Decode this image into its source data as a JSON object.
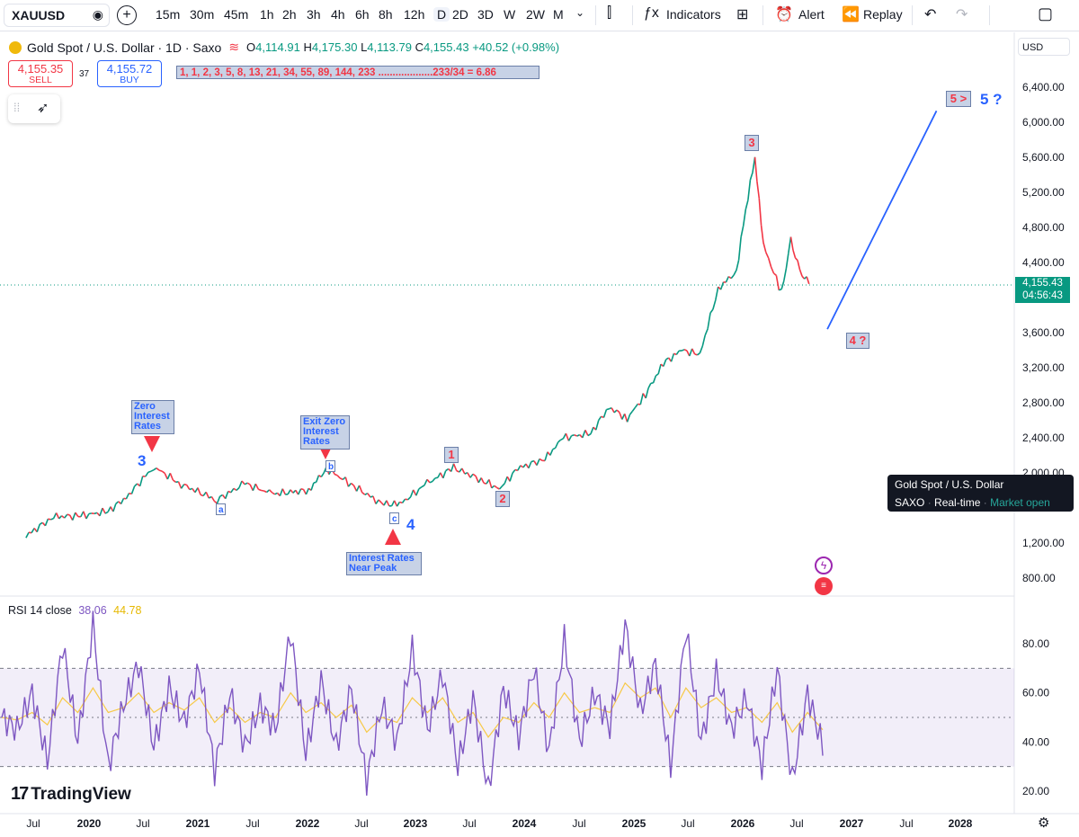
{
  "toolbar": {
    "symbol": "XAUUSD",
    "timeframes": [
      "15m",
      "30m",
      "45m",
      "1h",
      "2h",
      "3h",
      "4h",
      "6h",
      "8h",
      "12h",
      "D",
      "2D",
      "3D",
      "W",
      "2W",
      "M"
    ],
    "active_timeframe": "D",
    "indicators_label": "Indicators",
    "alert_label": "Alert",
    "replay_label": "Replay"
  },
  "legend": {
    "title": "Gold Spot / U.S. Dollar · 1D · Saxo",
    "open_label": "O",
    "open": "4,114.91",
    "high_label": "H",
    "high": "4,175.30",
    "low_label": "L",
    "low": "4,113.79",
    "close_label": "C",
    "close": "4,155.43",
    "change": "+40.52 (+0.98%)"
  },
  "trade": {
    "sell_price": "4,155.35",
    "sell_label": "SELL",
    "spread": "37",
    "buy_price": "4,155.72",
    "buy_label": "BUY"
  },
  "fib_note": "1, 1, 2, 3, 5, 8, 13, 21, 34, 55, 89, 144, 233 ...................233/34 = 6.86",
  "currency": "USD",
  "current_price": {
    "price": "4,155.43",
    "countdown": "04:56:43"
  },
  "tooltip": {
    "title": "Gold Spot / U.S. Dollar",
    "source": "SAXO",
    "type": "Real-time",
    "status": "Market open"
  },
  "annotations": {
    "zero_rates": "Zero Interest Rates",
    "exit_zero": "Exit Zero Interest Rates",
    "rates_peak": "Interest Rates Near Peak",
    "wave3_low": "3",
    "wave4_low": "4",
    "a": "a",
    "b": "b",
    "c": "c",
    "w1": "1",
    "w2": "2",
    "w3": "3",
    "w4q": "4 ?",
    "w5box": "5 >",
    "w5q": "5 ?"
  },
  "rsi": {
    "label": "RSI 14 close",
    "value": "38.06",
    "ma": "44.78"
  },
  "brand": "TradingView",
  "colors": {
    "candle_up": "#089981",
    "candle_down": "#f23645",
    "rsi_line": "#7e57c2",
    "rsi_ma": "#f7c948",
    "projection": "#2962ff",
    "annotation_red": "#f23645",
    "annotation_blue": "#2962ff"
  },
  "chart_data": [
    {
      "type": "line",
      "title": "Gold Spot / U.S. Dollar · 1D · Saxo",
      "series": [
        {
          "name": "Gold Spot / U.S. Dollar",
          "x": [
            "2019-06",
            "2019-09",
            "2019-12",
            "2020-03",
            "2020-05",
            "2020-08",
            "2020-11",
            "2021-03",
            "2021-06",
            "2021-09",
            "2022-01",
            "2022-03",
            "2022-06",
            "2022-09",
            "2022-11",
            "2023-02",
            "2023-05",
            "2023-08",
            "2023-10",
            "2023-12",
            "2024-03",
            "2024-05",
            "2024-08",
            "2024-10",
            "2024-12",
            "2025-02",
            "2025-04",
            "2025-06",
            "2025-08",
            "2025-10",
            "2025-12",
            "2026-01",
            "2026-02",
            "2026-03",
            "2026-05",
            "2026-06",
            "2026-07",
            "2026-08"
          ],
          "y": [
            1280,
            1500,
            1510,
            1560,
            1720,
            2070,
            1870,
            1690,
            1880,
            1760,
            1800,
            2050,
            1850,
            1650,
            1640,
            1880,
            2060,
            1920,
            1820,
            2050,
            2160,
            2400,
            2450,
            2750,
            2620,
            2900,
            3250,
            3400,
            3350,
            4100,
            4300,
            5000,
            5590,
            4600,
            4050,
            4650,
            4300,
            4155
          ]
        }
      ],
      "ylim": [
        700,
        6600
      ],
      "yticks": [
        "800.00",
        "1,200.00",
        "2,000.00",
        "2,400.00",
        "2,800.00",
        "3,200.00",
        "3,600.00",
        "4,000.00",
        "4,400.00",
        "4,800.00",
        "5,200.00",
        "5,600.00",
        "6,000.00",
        "6,400.00"
      ],
      "xticks": [
        "Jul",
        "2020",
        "Jul",
        "2021",
        "Jul",
        "2022",
        "Jul",
        "2023",
        "Jul",
        "2024",
        "Jul",
        "2025",
        "Jul",
        "2026",
        "Jul",
        "2027",
        "Jul",
        "2028"
      ],
      "projection": {
        "from": [
          "2026-10",
          3640
        ],
        "to": [
          "2027-10",
          6130
        ]
      }
    },
    {
      "type": "line",
      "title": "RSI 14 close",
      "series": [
        {
          "name": "RSI",
          "values": [
            50,
            45,
            60,
            32,
            80,
            40,
            88,
            30,
            55,
            72,
            38,
            62,
            48,
            70,
            28,
            60,
            38,
            55,
            45,
            85,
            35,
            65,
            38,
            62,
            24,
            55,
            40,
            78,
            45,
            68,
            30,
            58,
            20,
            62,
            42,
            70,
            36,
            82,
            40,
            60,
            46,
            88,
            52,
            72,
            30,
            86,
            40,
            68,
            45,
            58,
            30,
            70,
            24,
            60,
            38
          ]
        },
        {
          "name": "RSI MA",
          "values": [
            50,
            49,
            52,
            47,
            58,
            52,
            62,
            52,
            54,
            60,
            52,
            56,
            53,
            58,
            48,
            54,
            48,
            52,
            50,
            60,
            52,
            56,
            50,
            55,
            44,
            50,
            48,
            58,
            52,
            58,
            48,
            52,
            42,
            50,
            48,
            56,
            50,
            60,
            52,
            54,
            52,
            64,
            58,
            62,
            50,
            62,
            54,
            58,
            52,
            54,
            48,
            56,
            44,
            52,
            45
          ]
        }
      ],
      "ylim": [
        15,
        95
      ],
      "yticks": [
        "20.00",
        "40.00",
        "60.00",
        "80.00"
      ],
      "bands": [
        30,
        50,
        70
      ]
    }
  ]
}
